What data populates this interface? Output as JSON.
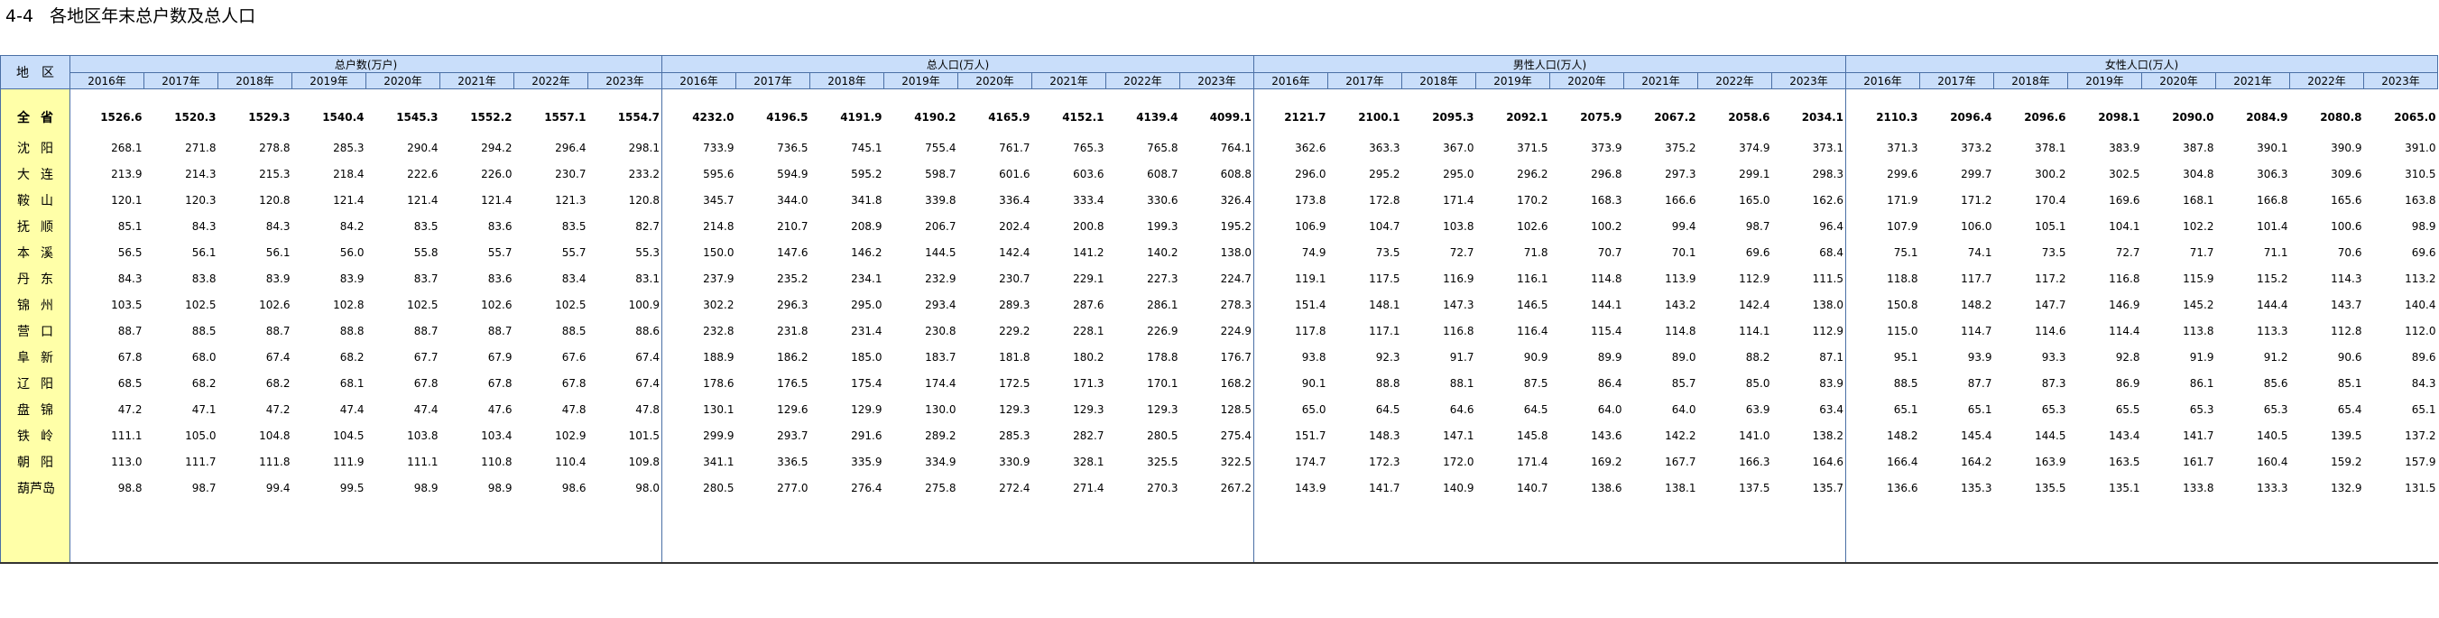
{
  "title": "4-4   各地区年末总户数及总人口",
  "header": {
    "region_label": "地区",
    "groups": [
      "总户数(万户)",
      "总人口(万人)",
      "男性人口(万人)",
      "女性人口(万人)"
    ],
    "years": [
      "2016年",
      "2017年",
      "2018年",
      "2019年",
      "2020年",
      "2021年",
      "2022年",
      "2023年"
    ]
  },
  "rows": [
    {
      "region": "全省",
      "households": [
        "1526.6",
        "1520.3",
        "1529.3",
        "1540.4",
        "1545.3",
        "1552.2",
        "1557.1",
        "1554.7"
      ],
      "total": [
        "4232.0",
        "4196.5",
        "4191.9",
        "4190.2",
        "4165.9",
        "4152.1",
        "4139.4",
        "4099.1"
      ],
      "male": [
        "2121.7",
        "2100.1",
        "2095.3",
        "2092.1",
        "2075.9",
        "2067.2",
        "2058.6",
        "2034.1"
      ],
      "female": [
        "2110.3",
        "2096.4",
        "2096.6",
        "2098.1",
        "2090.0",
        "2084.9",
        "2080.8",
        "2065.0"
      ]
    },
    {
      "region": "沈阳",
      "households": [
        "268.1",
        "271.8",
        "278.8",
        "285.3",
        "290.4",
        "294.2",
        "296.4",
        "298.1"
      ],
      "total": [
        "733.9",
        "736.5",
        "745.1",
        "755.4",
        "761.7",
        "765.3",
        "765.8",
        "764.1"
      ],
      "male": [
        "362.6",
        "363.3",
        "367.0",
        "371.5",
        "373.9",
        "375.2",
        "374.9",
        "373.1"
      ],
      "female": [
        "371.3",
        "373.2",
        "378.1",
        "383.9",
        "387.8",
        "390.1",
        "390.9",
        "391.0"
      ]
    },
    {
      "region": "大连",
      "households": [
        "213.9",
        "214.3",
        "215.3",
        "218.4",
        "222.6",
        "226.0",
        "230.7",
        "233.2"
      ],
      "total": [
        "595.6",
        "594.9",
        "595.2",
        "598.7",
        "601.6",
        "603.6",
        "608.7",
        "608.8"
      ],
      "male": [
        "296.0",
        "295.2",
        "295.0",
        "296.2",
        "296.8",
        "297.3",
        "299.1",
        "298.3"
      ],
      "female": [
        "299.6",
        "299.7",
        "300.2",
        "302.5",
        "304.8",
        "306.3",
        "309.6",
        "310.5"
      ]
    },
    {
      "region": "鞍山",
      "households": [
        "120.1",
        "120.3",
        "120.8",
        "121.4",
        "121.4",
        "121.4",
        "121.3",
        "120.8"
      ],
      "total": [
        "345.7",
        "344.0",
        "341.8",
        "339.8",
        "336.4",
        "333.4",
        "330.6",
        "326.4"
      ],
      "male": [
        "173.8",
        "172.8",
        "171.4",
        "170.2",
        "168.3",
        "166.6",
        "165.0",
        "162.6"
      ],
      "female": [
        "171.9",
        "171.2",
        "170.4",
        "169.6",
        "168.1",
        "166.8",
        "165.6",
        "163.8"
      ]
    },
    {
      "region": "抚顺",
      "households": [
        "85.1",
        "84.3",
        "84.3",
        "84.2",
        "83.5",
        "83.6",
        "83.5",
        "82.7"
      ],
      "total": [
        "214.8",
        "210.7",
        "208.9",
        "206.7",
        "202.4",
        "200.8",
        "199.3",
        "195.2"
      ],
      "male": [
        "106.9",
        "104.7",
        "103.8",
        "102.6",
        "100.2",
        "99.4",
        "98.7",
        "96.4"
      ],
      "female": [
        "107.9",
        "106.0",
        "105.1",
        "104.1",
        "102.2",
        "101.4",
        "100.6",
        "98.9"
      ]
    },
    {
      "region": "本溪",
      "households": [
        "56.5",
        "56.1",
        "56.1",
        "56.0",
        "55.8",
        "55.7",
        "55.7",
        "55.3"
      ],
      "total": [
        "150.0",
        "147.6",
        "146.2",
        "144.5",
        "142.4",
        "141.2",
        "140.2",
        "138.0"
      ],
      "male": [
        "74.9",
        "73.5",
        "72.7",
        "71.8",
        "70.7",
        "70.1",
        "69.6",
        "68.4"
      ],
      "female": [
        "75.1",
        "74.1",
        "73.5",
        "72.7",
        "71.7",
        "71.1",
        "70.6",
        "69.6"
      ]
    },
    {
      "region": "丹东",
      "households": [
        "84.3",
        "83.8",
        "83.9",
        "83.9",
        "83.7",
        "83.6",
        "83.4",
        "83.1"
      ],
      "total": [
        "237.9",
        "235.2",
        "234.1",
        "232.9",
        "230.7",
        "229.1",
        "227.3",
        "224.7"
      ],
      "male": [
        "119.1",
        "117.5",
        "116.9",
        "116.1",
        "114.8",
        "113.9",
        "112.9",
        "111.5"
      ],
      "female": [
        "118.8",
        "117.7",
        "117.2",
        "116.8",
        "115.9",
        "115.2",
        "114.3",
        "113.2"
      ]
    },
    {
      "region": "锦州",
      "households": [
        "103.5",
        "102.5",
        "102.6",
        "102.8",
        "102.5",
        "102.6",
        "102.5",
        "100.9"
      ],
      "total": [
        "302.2",
        "296.3",
        "295.0",
        "293.4",
        "289.3",
        "287.6",
        "286.1",
        "278.3"
      ],
      "male": [
        "151.4",
        "148.1",
        "147.3",
        "146.5",
        "144.1",
        "143.2",
        "142.4",
        "138.0"
      ],
      "female": [
        "150.8",
        "148.2",
        "147.7",
        "146.9",
        "145.2",
        "144.4",
        "143.7",
        "140.4"
      ]
    },
    {
      "region": "营口",
      "households": [
        "88.7",
        "88.5",
        "88.7",
        "88.8",
        "88.7",
        "88.7",
        "88.5",
        "88.6"
      ],
      "total": [
        "232.8",
        "231.8",
        "231.4",
        "230.8",
        "229.2",
        "228.1",
        "226.9",
        "224.9"
      ],
      "male": [
        "117.8",
        "117.1",
        "116.8",
        "116.4",
        "115.4",
        "114.8",
        "114.1",
        "112.9"
      ],
      "female": [
        "115.0",
        "114.7",
        "114.6",
        "114.4",
        "113.8",
        "113.3",
        "112.8",
        "112.0"
      ]
    },
    {
      "region": "阜新",
      "households": [
        "67.8",
        "68.0",
        "67.4",
        "68.2",
        "67.7",
        "67.9",
        "67.6",
        "67.4"
      ],
      "total": [
        "188.9",
        "186.2",
        "185.0",
        "183.7",
        "181.8",
        "180.2",
        "178.8",
        "176.7"
      ],
      "male": [
        "93.8",
        "92.3",
        "91.7",
        "90.9",
        "89.9",
        "89.0",
        "88.2",
        "87.1"
      ],
      "female": [
        "95.1",
        "93.9",
        "93.3",
        "92.8",
        "91.9",
        "91.2",
        "90.6",
        "89.6"
      ]
    },
    {
      "region": "辽阳",
      "households": [
        "68.5",
        "68.2",
        "68.2",
        "68.1",
        "67.8",
        "67.8",
        "67.8",
        "67.4"
      ],
      "total": [
        "178.6",
        "176.5",
        "175.4",
        "174.4",
        "172.5",
        "171.3",
        "170.1",
        "168.2"
      ],
      "male": [
        "90.1",
        "88.8",
        "88.1",
        "87.5",
        "86.4",
        "85.7",
        "85.0",
        "83.9"
      ],
      "female": [
        "88.5",
        "87.7",
        "87.3",
        "86.9",
        "86.1",
        "85.6",
        "85.1",
        "84.3"
      ]
    },
    {
      "region": "盘锦",
      "households": [
        "47.2",
        "47.1",
        "47.2",
        "47.4",
        "47.4",
        "47.6",
        "47.8",
        "47.8"
      ],
      "total": [
        "130.1",
        "129.6",
        "129.9",
        "130.0",
        "129.3",
        "129.3",
        "129.3",
        "128.5"
      ],
      "male": [
        "65.0",
        "64.5",
        "64.6",
        "64.5",
        "64.0",
        "64.0",
        "63.9",
        "63.4"
      ],
      "female": [
        "65.1",
        "65.1",
        "65.3",
        "65.5",
        "65.3",
        "65.3",
        "65.4",
        "65.1"
      ]
    },
    {
      "region": "铁岭",
      "households": [
        "111.1",
        "105.0",
        "104.8",
        "104.5",
        "103.8",
        "103.4",
        "102.9",
        "101.5"
      ],
      "total": [
        "299.9",
        "293.7",
        "291.6",
        "289.2",
        "285.3",
        "282.7",
        "280.5",
        "275.4"
      ],
      "male": [
        "151.7",
        "148.3",
        "147.1",
        "145.8",
        "143.6",
        "142.2",
        "141.0",
        "138.2"
      ],
      "female": [
        "148.2",
        "145.4",
        "144.5",
        "143.4",
        "141.7",
        "140.5",
        "139.5",
        "137.2"
      ]
    },
    {
      "region": "朝阳",
      "households": [
        "113.0",
        "111.7",
        "111.8",
        "111.9",
        "111.1",
        "110.8",
        "110.4",
        "109.8"
      ],
      "total": [
        "341.1",
        "336.5",
        "335.9",
        "334.9",
        "330.9",
        "328.1",
        "325.5",
        "322.5"
      ],
      "male": [
        "174.7",
        "172.3",
        "172.0",
        "171.4",
        "169.2",
        "167.7",
        "166.3",
        "164.6"
      ],
      "female": [
        "166.4",
        "164.2",
        "163.9",
        "163.5",
        "161.7",
        "160.4",
        "159.2",
        "157.9"
      ]
    },
    {
      "region": "葫芦岛",
      "households": [
        "98.8",
        "98.7",
        "99.4",
        "99.5",
        "98.9",
        "98.9",
        "98.6",
        "98.0"
      ],
      "total": [
        "280.5",
        "277.0",
        "276.4",
        "275.8",
        "272.4",
        "271.4",
        "270.3",
        "267.2"
      ],
      "male": [
        "143.9",
        "141.7",
        "140.9",
        "140.7",
        "138.6",
        "138.1",
        "137.5",
        "135.7"
      ],
      "female": [
        "136.6",
        "135.3",
        "135.5",
        "135.1",
        "133.8",
        "133.3",
        "132.9",
        "131.5"
      ]
    }
  ]
}
